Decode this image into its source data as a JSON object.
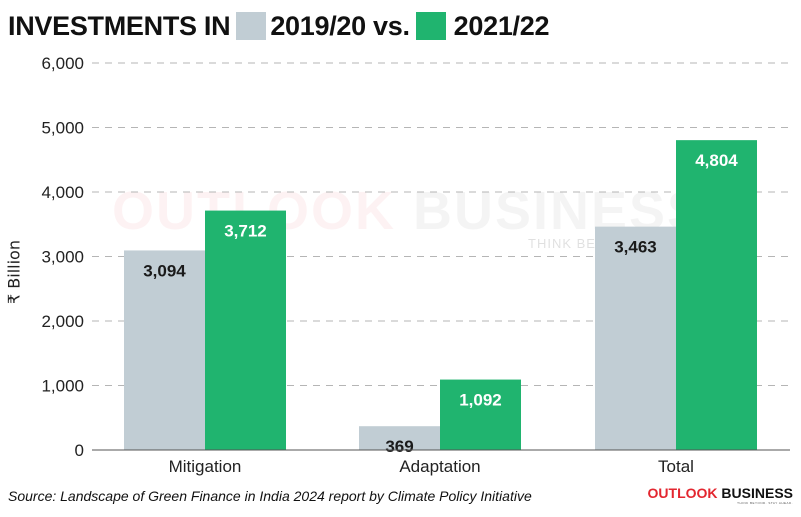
{
  "title": {
    "prefix": "INVESTMENTS IN",
    "year1": "2019/20 vs.",
    "year2": "2021/22"
  },
  "chart_data": {
    "type": "bar",
    "categories": [
      "Mitigation",
      "Adaptation",
      "Total"
    ],
    "series": [
      {
        "name": "2019/20",
        "color": "#c1cdd4",
        "values": [
          3094,
          369,
          3463
        ],
        "labels": [
          "3,094",
          "369",
          "3,463"
        ]
      },
      {
        "name": "2021/22",
        "color": "#20b46f",
        "values": [
          3712,
          1092,
          4804
        ],
        "labels": [
          "3,712",
          "1,092",
          "4,804"
        ]
      }
    ],
    "ylabel": "₹ Billion",
    "ylim": [
      0,
      6000
    ],
    "yticks": [
      0,
      1000,
      2000,
      3000,
      4000,
      5000,
      6000
    ],
    "ytick_labels": [
      "0",
      "1,000",
      "2,000",
      "3,000",
      "4,000",
      "5,000",
      "6,000"
    ],
    "grid": true,
    "legend": "title"
  },
  "source": "Source: Landscape of Green Finance in India 2024 report by Climate Policy Initiative",
  "brand": {
    "part1": "OUTLOOK",
    "part2": "BUSINESS",
    "tagline": "THINK BEYOND. STAY AHEAD."
  },
  "watermark": {
    "part1": "OUTLOOK",
    "part2": "BUSINESS",
    "tagline": "THINK BEYOND. STAY AHEAD."
  },
  "colors": {
    "year1": "#c1cdd4",
    "year2": "#20b46f",
    "label_dark": "#1a1a1a",
    "label_light": "#ffffff"
  }
}
